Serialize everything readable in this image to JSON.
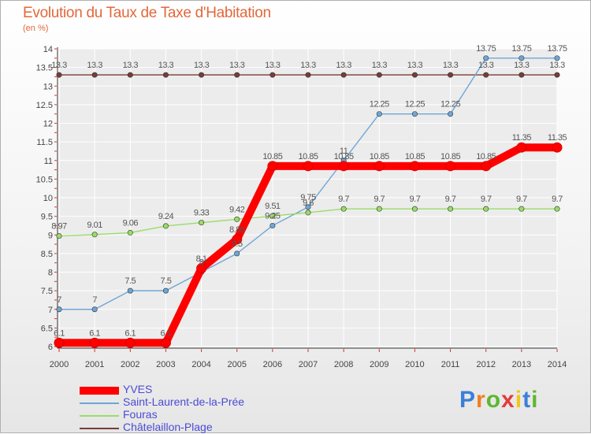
{
  "header": {
    "title": "Evolution du Taux de Taxe d'Habitation",
    "unit": "(en %)"
  },
  "chart_data": {
    "type": "line",
    "x": [
      "2000",
      "2001",
      "2002",
      "2003",
      "2004",
      "2005",
      "2006",
      "2007",
      "2008",
      "2009",
      "2010",
      "2011",
      "2012",
      "2013",
      "2014"
    ],
    "ylim": [
      6,
      14
    ],
    "yticks": [
      "6",
      "6.5",
      "7",
      "7.5",
      "8",
      "8.5",
      "9",
      "9.5",
      "10",
      "10.5",
      "11",
      "11.5",
      "12",
      "12.5",
      "13",
      "13.5",
      "14"
    ],
    "grid": true,
    "legend_placement": "bottom-left",
    "series": [
      {
        "name": "YVES",
        "color": "#ff0000",
        "values": [
          6.1,
          6.1,
          6.1,
          6.1,
          8.1,
          8.88,
          10.85,
          10.85,
          10.85,
          10.85,
          10.85,
          10.85,
          10.85,
          11.35,
          11.35
        ],
        "labels": [
          "6.1",
          "6.1",
          "6.1",
          "6.1",
          "8.1",
          "8.88",
          "10.85",
          "10.85",
          "10.85",
          "10.85",
          "10.85",
          "10.85",
          "10.85",
          "11.35",
          "11.35"
        ]
      },
      {
        "name": "Saint-Laurent-de-la-Prée",
        "color": "#6fa6d6",
        "values": [
          7,
          7,
          7.5,
          7.5,
          8,
          8.5,
          9.25,
          9.75,
          11,
          12.25,
          12.25,
          12.25,
          13.75,
          13.75,
          13.75
        ],
        "labels": [
          "7",
          "7",
          "7.5",
          "7.5",
          "8",
          "8.5",
          "9.25",
          "9.75",
          "11",
          "12.25",
          "12.25",
          "12.25",
          "13.75",
          "13.75",
          "13.75"
        ]
      },
      {
        "name": "Fouras",
        "color": "#99dd66",
        "values": [
          8.97,
          9.01,
          9.06,
          9.24,
          9.33,
          9.42,
          9.51,
          9.6,
          9.7,
          9.7,
          9.7,
          9.7,
          9.7,
          9.7,
          9.7
        ],
        "labels": [
          "8.97",
          "9.01",
          "9.06",
          "9.24",
          "9.33",
          "9.42",
          "9.51",
          "9.6",
          "9.7",
          "9.7",
          "9.7",
          "9.7",
          "9.7",
          "9.7",
          "9.7"
        ]
      },
      {
        "name": "Châtelaillon-Plage",
        "color": "#7a3b3b",
        "values": [
          13.3,
          13.3,
          13.3,
          13.3,
          13.3,
          13.3,
          13.3,
          13.3,
          13.3,
          13.3,
          13.3,
          13.3,
          13.3,
          13.3,
          13.3
        ],
        "labels": [
          "13.3",
          "13.3",
          "13.3",
          "13.3",
          "13.3",
          "13.3",
          "13.3",
          "13.3",
          "13.3",
          "13.3",
          "13.3",
          "13.3",
          "13.3",
          "13.3",
          "13.3"
        ]
      }
    ]
  },
  "logo": {
    "letters": [
      "P",
      "r",
      "o",
      "x",
      "i",
      "t",
      "i"
    ],
    "colors": [
      "#3a7fd9",
      "#f07f1f",
      "#5cb82e",
      "#e23b3b",
      "#f5c518",
      "#3a7fd9",
      "#5cb82e"
    ]
  }
}
